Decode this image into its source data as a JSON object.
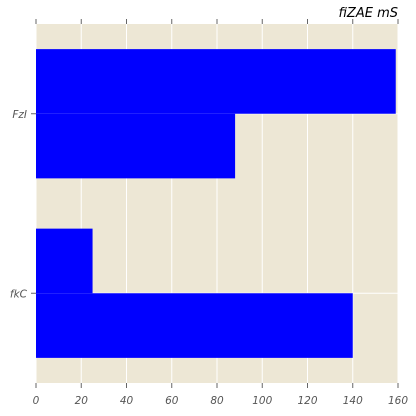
{
  "chart_data": {
    "type": "bar",
    "orientation": "horizontal",
    "title": "fiZAE mS",
    "xlabel": "",
    "ylabel": "",
    "categories": [
      "FzI",
      "fkC"
    ],
    "series": [
      {
        "values": [
          159,
          25
        ]
      },
      {
        "values": [
          88,
          140
        ]
      }
    ],
    "xlim": [
      0,
      160
    ],
    "xticks": [
      0,
      20,
      40,
      60,
      80,
      100,
      120,
      140,
      160
    ],
    "grid": true,
    "legend": "none",
    "colors": {
      "bar": "#0000ff",
      "background": "#ede7d5",
      "grid": "#ffffff",
      "tick_mark": "#666666"
    }
  }
}
